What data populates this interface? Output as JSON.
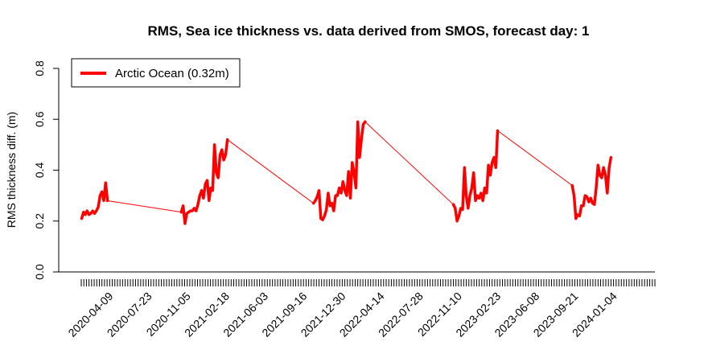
{
  "chart_data": {
    "type": "line",
    "title": "RMS, Sea ice thickness vs. data derived from SMOS, forecast day: 1",
    "ylabel": "RMS thickness diff. (m)",
    "xlabel": "",
    "ylim": [
      0,
      0.8
    ],
    "y_ticks": [
      "0.0",
      "0.2",
      "0.4",
      "0.6",
      "0.8"
    ],
    "x_tick_labels": [
      "2020-04-09",
      "2020-07-23",
      "2020-11-05",
      "2021-02-18",
      "2021-06-03",
      "2021-09-16",
      "2021-12-30",
      "2022-04-14",
      "2022-07-28",
      "2022-11-10",
      "2023-02-23",
      "2023-06-08",
      "2023-09-21",
      "2024-01-04"
    ],
    "x_tick_interval_days": 7,
    "x_first_tick": "2020-01-23",
    "x_last_tick": "2024-04-25",
    "x_range": [
      "2020-01-16",
      "2024-05-02"
    ],
    "legend": {
      "position": "top-left",
      "entries": [
        {
          "label": "Arctic Ocean (0.32m)",
          "color": "#ff0000"
        }
      ]
    },
    "grid": false,
    "series": [
      {
        "name": "Arctic Ocean (0.32m)",
        "color": "#ff0000",
        "points": [
          [
            "2020-01-24",
            0.21
          ],
          [
            "2020-01-29",
            0.235
          ],
          [
            "2020-02-03",
            0.225
          ],
          [
            "2020-02-08",
            0.24
          ],
          [
            "2020-02-13",
            0.225
          ],
          [
            "2020-02-18",
            0.23
          ],
          [
            "2020-02-23",
            0.24
          ],
          [
            "2020-02-28",
            0.23
          ],
          [
            "2020-03-04",
            0.24
          ],
          [
            "2020-03-09",
            0.255
          ],
          [
            "2020-03-14",
            0.3
          ],
          [
            "2020-03-19",
            0.315
          ],
          [
            "2020-03-24",
            0.28
          ],
          [
            "2020-03-29",
            0.35
          ],
          [
            "2020-04-03",
            0.28
          ],
          [
            "2020-10-20",
            0.235
          ],
          [
            "2020-10-25",
            0.26
          ],
          [
            "2020-10-30",
            0.19
          ],
          [
            "2020-11-04",
            0.23
          ],
          [
            "2020-11-09",
            0.235
          ],
          [
            "2020-11-14",
            0.24
          ],
          [
            "2020-11-19",
            0.24
          ],
          [
            "2020-11-24",
            0.25
          ],
          [
            "2020-11-29",
            0.24
          ],
          [
            "2020-12-04",
            0.265
          ],
          [
            "2020-12-09",
            0.3
          ],
          [
            "2020-12-14",
            0.32
          ],
          [
            "2020-12-19",
            0.29
          ],
          [
            "2020-12-24",
            0.345
          ],
          [
            "2020-12-29",
            0.36
          ],
          [
            "2021-01-03",
            0.28
          ],
          [
            "2021-01-08",
            0.33
          ],
          [
            "2021-01-13",
            0.32
          ],
          [
            "2021-01-18",
            0.5
          ],
          [
            "2021-01-23",
            0.39
          ],
          [
            "2021-01-28",
            0.37
          ],
          [
            "2021-02-02",
            0.46
          ],
          [
            "2021-02-07",
            0.48
          ],
          [
            "2021-02-12",
            0.44
          ],
          [
            "2021-02-17",
            0.46
          ],
          [
            "2021-02-22",
            0.52
          ],
          [
            "2021-10-13",
            0.27
          ],
          [
            "2021-10-18",
            0.28
          ],
          [
            "2021-10-23",
            0.295
          ],
          [
            "2021-10-28",
            0.32
          ],
          [
            "2021-11-02",
            0.21
          ],
          [
            "2021-11-07",
            0.205
          ],
          [
            "2021-11-12",
            0.22
          ],
          [
            "2021-11-17",
            0.245
          ],
          [
            "2021-11-22",
            0.31
          ],
          [
            "2021-11-27",
            0.26
          ],
          [
            "2021-12-02",
            0.27
          ],
          [
            "2021-12-07",
            0.24
          ],
          [
            "2021-12-12",
            0.3
          ],
          [
            "2021-12-17",
            0.3
          ],
          [
            "2021-12-22",
            0.33
          ],
          [
            "2021-12-27",
            0.31
          ],
          [
            "2022-01-01",
            0.355
          ],
          [
            "2022-01-06",
            0.32
          ],
          [
            "2022-01-11",
            0.3
          ],
          [
            "2022-01-16",
            0.395
          ],
          [
            "2022-01-21",
            0.29
          ],
          [
            "2022-01-26",
            0.43
          ],
          [
            "2022-01-31",
            0.39
          ],
          [
            "2022-02-05",
            0.33
          ],
          [
            "2022-02-10",
            0.59
          ],
          [
            "2022-02-15",
            0.45
          ],
          [
            "2022-02-20",
            0.52
          ],
          [
            "2022-02-25",
            0.58
          ],
          [
            "2022-03-02",
            0.59
          ],
          [
            "2022-10-27",
            0.265
          ],
          [
            "2022-11-01",
            0.25
          ],
          [
            "2022-11-06",
            0.2
          ],
          [
            "2022-11-11",
            0.22
          ],
          [
            "2022-11-16",
            0.25
          ],
          [
            "2022-11-21",
            0.245
          ],
          [
            "2022-11-26",
            0.41
          ],
          [
            "2022-12-01",
            0.3
          ],
          [
            "2022-12-06",
            0.25
          ],
          [
            "2022-12-11",
            0.3
          ],
          [
            "2022-12-16",
            0.33
          ],
          [
            "2022-12-21",
            0.39
          ],
          [
            "2022-12-26",
            0.28
          ],
          [
            "2022-12-31",
            0.3
          ],
          [
            "2023-01-05",
            0.29
          ],
          [
            "2023-01-10",
            0.31
          ],
          [
            "2023-01-15",
            0.28
          ],
          [
            "2023-01-20",
            0.33
          ],
          [
            "2023-01-25",
            0.31
          ],
          [
            "2023-01-30",
            0.42
          ],
          [
            "2023-02-04",
            0.38
          ],
          [
            "2023-02-09",
            0.43
          ],
          [
            "2023-02-14",
            0.45
          ],
          [
            "2023-02-19",
            0.41
          ],
          [
            "2023-02-24",
            0.555
          ],
          [
            "2023-09-14",
            0.34
          ],
          [
            "2023-09-19",
            0.3
          ],
          [
            "2023-09-24",
            0.21
          ],
          [
            "2023-09-29",
            0.225
          ],
          [
            "2023-10-04",
            0.22
          ],
          [
            "2023-10-09",
            0.26
          ],
          [
            "2023-10-14",
            0.26
          ],
          [
            "2023-10-19",
            0.3
          ],
          [
            "2023-10-24",
            0.295
          ],
          [
            "2023-10-29",
            0.275
          ],
          [
            "2023-11-03",
            0.29
          ],
          [
            "2023-11-08",
            0.27
          ],
          [
            "2023-11-13",
            0.265
          ],
          [
            "2023-11-18",
            0.33
          ],
          [
            "2023-11-23",
            0.42
          ],
          [
            "2023-11-28",
            0.38
          ],
          [
            "2023-12-03",
            0.37
          ],
          [
            "2023-12-08",
            0.41
          ],
          [
            "2023-12-13",
            0.38
          ],
          [
            "2023-12-18",
            0.31
          ],
          [
            "2023-12-23",
            0.41
          ],
          [
            "2023-12-28",
            0.45
          ]
        ]
      }
    ]
  }
}
